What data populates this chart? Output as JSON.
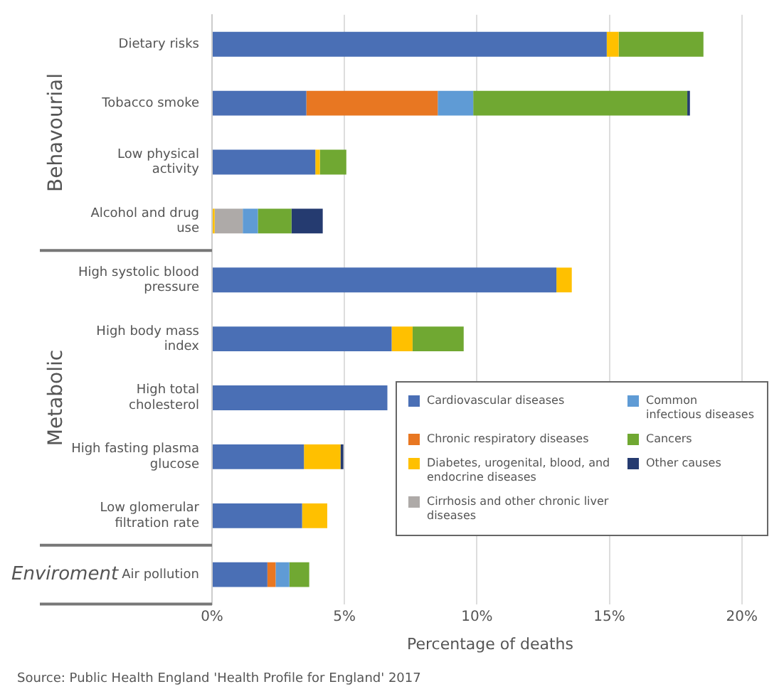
{
  "chart_data": {
    "type": "bar",
    "orientation": "horizontal",
    "stacked": true,
    "categories": [
      "Dietary risks",
      "Tobacco smoke",
      "Low physical activity",
      "Alcohol and drug use",
      "High systolic blood pressure",
      "High body mass index",
      "High total cholesterol",
      "High fasting plasma glucose",
      "Low glomerular filtration rate",
      "Air pollution"
    ],
    "series": [
      {
        "name": "Cardiovascular diseases",
        "color": "#4a6fb5",
        "values": [
          14.9,
          3.56,
          3.9,
          null,
          13.0,
          6.78,
          6.62,
          3.47,
          3.4,
          2.09
        ]
      },
      {
        "name": "Chronic respiratory diseases",
        "color": "#e87722",
        "values": [
          null,
          4.96,
          null,
          null,
          null,
          null,
          null,
          null,
          null,
          0.31
        ]
      },
      {
        "name": "Diabetes, urogenital, blood, and endocrine diseases",
        "color": "#ffc000",
        "values": [
          0.45,
          null,
          0.17,
          0.1,
          0.58,
          0.79,
          null,
          1.38,
          0.95,
          null
        ]
      },
      {
        "name": "Cirrhosis and other chronic liver diseases",
        "color": "#aeaaa8",
        "values": [
          null,
          null,
          null,
          1.06,
          null,
          null,
          null,
          null,
          null,
          null
        ]
      },
      {
        "name": "Common infectious diseases",
        "color": "#5f9bd5",
        "values": [
          null,
          1.34,
          null,
          0.57,
          null,
          null,
          null,
          null,
          null,
          0.52
        ]
      },
      {
        "name": "Cancers",
        "color": "#70a832",
        "values": [
          3.2,
          8.08,
          1.0,
          1.27,
          null,
          1.93,
          null,
          null,
          null,
          0.75
        ]
      },
      {
        "name": "Other causes",
        "color": "#253b70",
        "values": [
          null,
          0.1,
          null,
          1.18,
          null,
          null,
          null,
          0.11,
          null,
          null
        ]
      }
    ],
    "xlim": [
      0,
      21
    ],
    "xticks": [
      {
        "value": 0,
        "label": "0%"
      },
      {
        "value": 5,
        "label": "5%"
      },
      {
        "value": 10,
        "label": "10%"
      },
      {
        "value": 15,
        "label": "15%"
      },
      {
        "value": 20,
        "label": "20%"
      }
    ],
    "xlabel": "Percentage of deaths",
    "grid": "x",
    "legend": "bottom right",
    "annotations": [
      "Behavourial",
      "Metabolic",
      "Enviroment",
      "Source: Public Health England 'Health Profile for England' 2017"
    ]
  }
}
